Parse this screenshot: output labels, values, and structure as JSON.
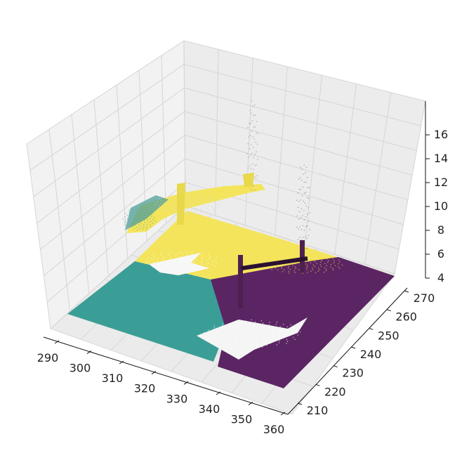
{
  "chart_data": {
    "type": "scatter",
    "projection": "3d",
    "title": "",
    "xlabel": "",
    "ylabel": "",
    "zlabel": "",
    "grid": true,
    "legend": "none",
    "colormap": "viridis",
    "xlim": [
      285,
      360
    ],
    "ylim": [
      205,
      275
    ],
    "zlim": [
      3.5,
      17.5
    ],
    "x_ticks": [
      "290",
      "300",
      "310",
      "320",
      "330",
      "340",
      "350",
      "360"
    ],
    "y_ticks": [
      "210",
      "220",
      "230",
      "240",
      "250",
      "260",
      "270"
    ],
    "z_ticks": [
      "4",
      "6",
      "8",
      "10",
      "12",
      "14",
      "16"
    ],
    "x_tick_values": [
      290,
      300,
      310,
      320,
      330,
      340,
      350,
      360
    ],
    "y_tick_values": [
      210,
      220,
      230,
      240,
      250,
      260,
      270
    ],
    "z_tick_values": [
      4,
      6,
      8,
      10,
      12,
      14,
      16
    ],
    "series": [
      {
        "color": "#fde725",
        "description_level": "elevated",
        "values": [
          [
            292,
            262,
            8.5
          ],
          [
            320,
            268,
            9.5
          ],
          [
            340,
            262,
            5.5
          ]
        ]
      },
      {
        "color": "#21918c",
        "description_level": "ground",
        "values": [
          [
            286,
            218,
            4.0
          ],
          [
            310,
            240,
            4.2
          ]
        ]
      },
      {
        "color": "#440154",
        "description_level": "ground",
        "values": [
          [
            330,
            210,
            4.0
          ],
          [
            358,
            265,
            4.2
          ]
        ]
      }
    ],
    "colors": {
      "yellow": "#f4e45c",
      "teal": "#3b9e96",
      "purple": "#5b2564",
      "pane": "#f2f2f2",
      "grid": "#c8c8c8"
    }
  }
}
